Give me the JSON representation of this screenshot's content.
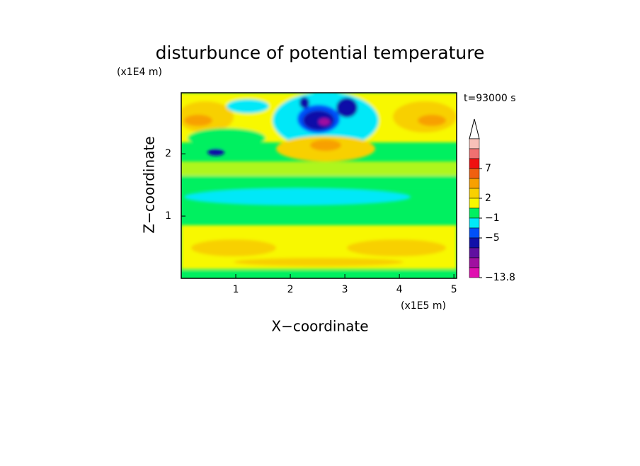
{
  "chart_data": {
    "type": "contour",
    "title": "disturbunce of potential temperature",
    "x_label": "X−coordinate",
    "y_label": "Z−coordinate",
    "x_unit": "(x1E5 m)",
    "y_unit": "(x1E4 m)",
    "time_label": "t=93000 s",
    "xlim": [
      0,
      5.05
    ],
    "ylim": [
      0,
      2.98
    ],
    "xticks": [
      1,
      2,
      3,
      4,
      5
    ],
    "yticks": [
      1,
      2
    ],
    "colorbar": {
      "colors": [
        "#f8c0b8",
        "#f07070",
        "#f01010",
        "#f06010",
        "#f8a000",
        "#f8d000",
        "#f8f800",
        "#00f060",
        "#00e8f8",
        "#0050f8",
        "#1010a8",
        "#6010a0",
        "#a010a0",
        "#e010b0"
      ],
      "ticks": [
        {
          "value": 7,
          "label": "7"
        },
        {
          "value": 2,
          "label": "2"
        },
        {
          "value": -1,
          "label": "−1"
        },
        {
          "value": -5,
          "label": "−5"
        },
        {
          "value": -13.8,
          "label": "−13.8"
        }
      ]
    }
  }
}
